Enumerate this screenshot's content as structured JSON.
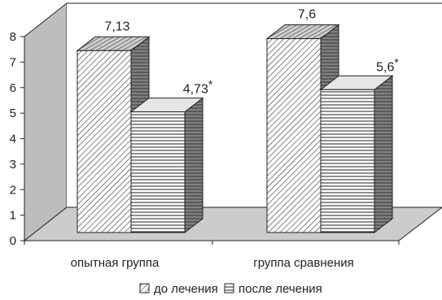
{
  "chart_data": {
    "type": "bar",
    "categories": [
      "опытная группа",
      "группа сравнения"
    ],
    "series": [
      {
        "name": "до лечения",
        "values": [
          7.13,
          7.6
        ],
        "pattern": "diagonal"
      },
      {
        "name": "после лечения",
        "values": [
          4.73,
          5.6
        ],
        "pattern": "horizontal"
      }
    ],
    "data_labels": [
      [
        "7,13",
        "7,6"
      ],
      [
        "4,73*",
        "5,6*"
      ]
    ],
    "yticks": [
      "0",
      "1",
      "2",
      "3",
      "4",
      "5",
      "6",
      "7",
      "8"
    ],
    "ylim": [
      0,
      8
    ],
    "title": "",
    "xlabel": "",
    "ylabel": "",
    "legend_position": "bottom",
    "three_d": true,
    "colors": {
      "wall": "#bdbdbd",
      "floor": "#cccccc",
      "bar_face": "#ffffff",
      "bar_side": "#808080",
      "bar_top": "#d9d9d9",
      "stroke": "#222222"
    }
  }
}
